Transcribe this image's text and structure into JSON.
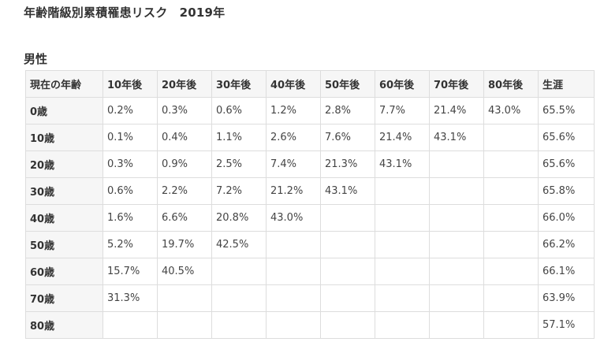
{
  "page": {
    "title": "年齢階級別累積罹患リスク　2019年",
    "section_heading": "男性"
  },
  "table": {
    "headers": [
      "現在の年齢",
      "10年後",
      "20年後",
      "30年後",
      "40年後",
      "50年後",
      "60年後",
      "70年後",
      "80年後",
      "生涯"
    ],
    "rows": [
      {
        "age": "0歳",
        "cells": [
          "0.2%",
          "0.3%",
          "0.6%",
          "1.2%",
          "2.8%",
          "7.7%",
          "21.4%",
          "43.0%",
          "65.5%"
        ]
      },
      {
        "age": "10歳",
        "cells": [
          "0.1%",
          "0.4%",
          "1.1%",
          "2.6%",
          "7.6%",
          "21.4%",
          "43.1%",
          "",
          "65.6%"
        ]
      },
      {
        "age": "20歳",
        "cells": [
          "0.3%",
          "0.9%",
          "2.5%",
          "7.4%",
          "21.3%",
          "43.1%",
          "",
          "",
          "65.6%"
        ]
      },
      {
        "age": "30歳",
        "cells": [
          "0.6%",
          "2.2%",
          "7.2%",
          "21.2%",
          "43.1%",
          "",
          "",
          "",
          "65.8%"
        ]
      },
      {
        "age": "40歳",
        "cells": [
          "1.6%",
          "6.6%",
          "20.8%",
          "43.0%",
          "",
          "",
          "",
          "",
          "66.0%"
        ]
      },
      {
        "age": "50歳",
        "cells": [
          "5.2%",
          "19.7%",
          "42.5%",
          "",
          "",
          "",
          "",
          "",
          "66.2%"
        ]
      },
      {
        "age": "60歳",
        "cells": [
          "15.7%",
          "40.5%",
          "",
          "",
          "",
          "",
          "",
          "",
          "66.1%"
        ]
      },
      {
        "age": "70歳",
        "cells": [
          "31.3%",
          "",
          "",
          "",
          "",
          "",
          "",
          "",
          "63.9%"
        ]
      },
      {
        "age": "80歳",
        "cells": [
          "",
          "",
          "",
          "",
          "",
          "",
          "",
          "",
          "57.1%"
        ]
      }
    ]
  }
}
